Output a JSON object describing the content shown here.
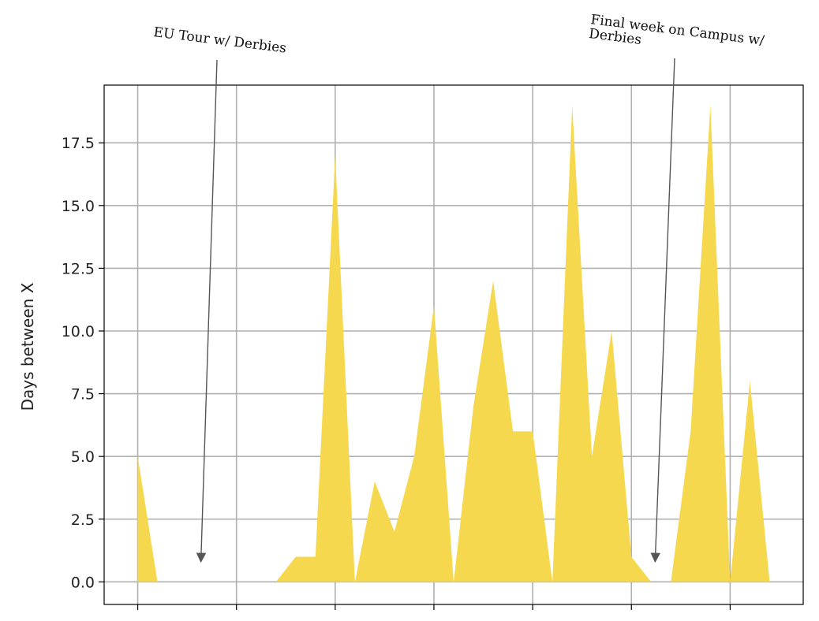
{
  "chart_data": {
    "type": "area",
    "ylabel": "Days between X",
    "ylim": [
      -0.9,
      19.8
    ],
    "xlim": [
      -1.7,
      33.7
    ],
    "yticks": [
      "0.0",
      "2.5",
      "5.0",
      "7.5",
      "10.0",
      "12.5",
      "15.0",
      "17.5"
    ],
    "ytick_values": [
      0,
      2.5,
      5,
      7.5,
      10,
      12.5,
      15,
      17.5
    ],
    "xtick_positions": [
      0,
      5,
      10,
      15,
      20,
      25,
      30
    ],
    "grid": true,
    "fill_color": "#f5d84d",
    "x": [
      0,
      1,
      2,
      3,
      4,
      5,
      6,
      7,
      8,
      9,
      10,
      11,
      12,
      13,
      14,
      15,
      16,
      17,
      18,
      19,
      20,
      21,
      22,
      23,
      24,
      25,
      26,
      27,
      28,
      29,
      30,
      31,
      32
    ],
    "values": [
      5,
      0,
      0,
      0,
      0,
      0,
      0,
      0,
      1,
      1,
      17,
      0,
      4,
      2,
      5,
      11,
      0,
      7,
      12,
      6,
      6,
      0,
      19,
      5,
      10,
      1,
      0,
      0,
      6,
      19,
      0,
      8,
      0
    ],
    "annotations": [
      {
        "text": "EU Tour w/ Derbies",
        "x": 3.2,
        "y": 0.8
      },
      {
        "text": "Final week on Campus w/ Derbies",
        "x": 26.2,
        "y": 0.8
      }
    ]
  }
}
